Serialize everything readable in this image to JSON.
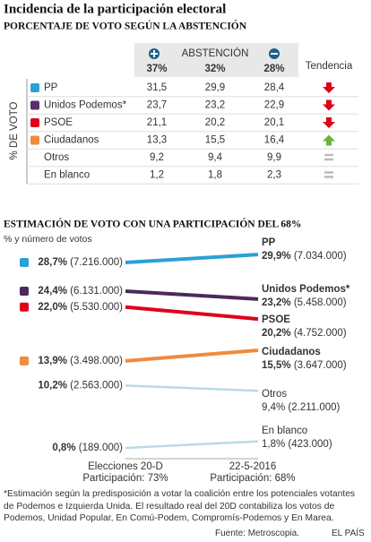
{
  "title": "Incidencia de la participación electoral",
  "table": {
    "title": "PORCENTAJE DE VOTO SEGÚN LA ABSTENCIÓN",
    "abstention_label": "ABSTENCIÓN",
    "columns": [
      "37%",
      "32%",
      "28%"
    ],
    "trend_label": "Tendencia",
    "side_label": "% DE VOTO",
    "rows": [
      {
        "party": "PP",
        "values": [
          "31,5",
          "29,9",
          "28,4"
        ],
        "trend": "down"
      },
      {
        "party": "Unidos Podemos*",
        "values": [
          "23,7",
          "23,2",
          "22,9"
        ],
        "trend": "down"
      },
      {
        "party": "PSOE",
        "values": [
          "21,1",
          "20,2",
          "20,1"
        ],
        "trend": "down"
      },
      {
        "party": "Ciudadanos",
        "values": [
          "13,3",
          "15,5",
          "16,4"
        ],
        "trend": "up"
      },
      {
        "party": "Otros",
        "values": [
          "9,2",
          "9,4",
          "9,9"
        ],
        "trend": "equal"
      },
      {
        "party": "En blanco",
        "values": [
          "1,2",
          "1,8",
          "2,3"
        ],
        "trend": "equal"
      }
    ]
  },
  "chart_data": {
    "type": "slope",
    "title": "ESTIMACIÓN DE VOTO CON UNA PARTICIPACIÓN DEL 68%",
    "subtitle": "% y número de votos",
    "categories": [
      "Elecciones 20-D",
      "22-5-2016"
    ],
    "category_notes": [
      "Participación: 73%",
      "Participación: 68%"
    ],
    "series": [
      {
        "name": "PP",
        "color": "#2aa1d6",
        "highlight": true,
        "values": [
          28.7,
          29.9
        ],
        "value_labels": [
          "28,7%",
          "29,9%"
        ],
        "vote_labels": [
          "(7.216.000)",
          "(7.034.000)"
        ]
      },
      {
        "name": "Unidos Podemos*",
        "color": "#4b2a5b",
        "highlight": true,
        "values": [
          24.4,
          23.2
        ],
        "value_labels": [
          "24,4%",
          "23,2%"
        ],
        "vote_labels": [
          "(6.131.000)",
          "(5.458.000)"
        ]
      },
      {
        "name": "PSOE",
        "color": "#e0001a",
        "highlight": true,
        "values": [
          22.0,
          20.2
        ],
        "value_labels": [
          "22,0%",
          "20,2%"
        ],
        "vote_labels": [
          "(5.530.000)",
          "(4.752.000)"
        ]
      },
      {
        "name": "Ciudadanos",
        "color": "#f08a3c",
        "highlight": true,
        "values": [
          13.9,
          15.5
        ],
        "value_labels": [
          "13,9%",
          "15,5%"
        ],
        "vote_labels": [
          "(3.498.000)",
          "(3.647.000)"
        ]
      },
      {
        "name": "Otros",
        "color": "#bcd8e4",
        "highlight": false,
        "values": [
          10.2,
          9.4
        ],
        "value_labels": [
          "10,2%",
          "9,4%"
        ],
        "vote_labels": [
          "(2.563.000)",
          "(2.211.000)"
        ]
      },
      {
        "name": "En blanco",
        "color": "#bcd8e4",
        "highlight": false,
        "values": [
          0.8,
          1.8
        ],
        "value_labels": [
          "0,8%",
          "1,8%"
        ],
        "vote_labels": [
          "(189.000)",
          "(423.000)"
        ]
      }
    ]
  },
  "footnote": "*Estimación según la predisposición a votar la coalición entre los potenciales votantes de Podemos e Izquierda Unida. El resultado real del 20D contabiliza los votos de Podemos, Unidad Popular, En Comú-Podem, Compromís-Podemos y En Marea.",
  "source": "Fuente: Metroscopia.",
  "brand": "EL PAÍS"
}
